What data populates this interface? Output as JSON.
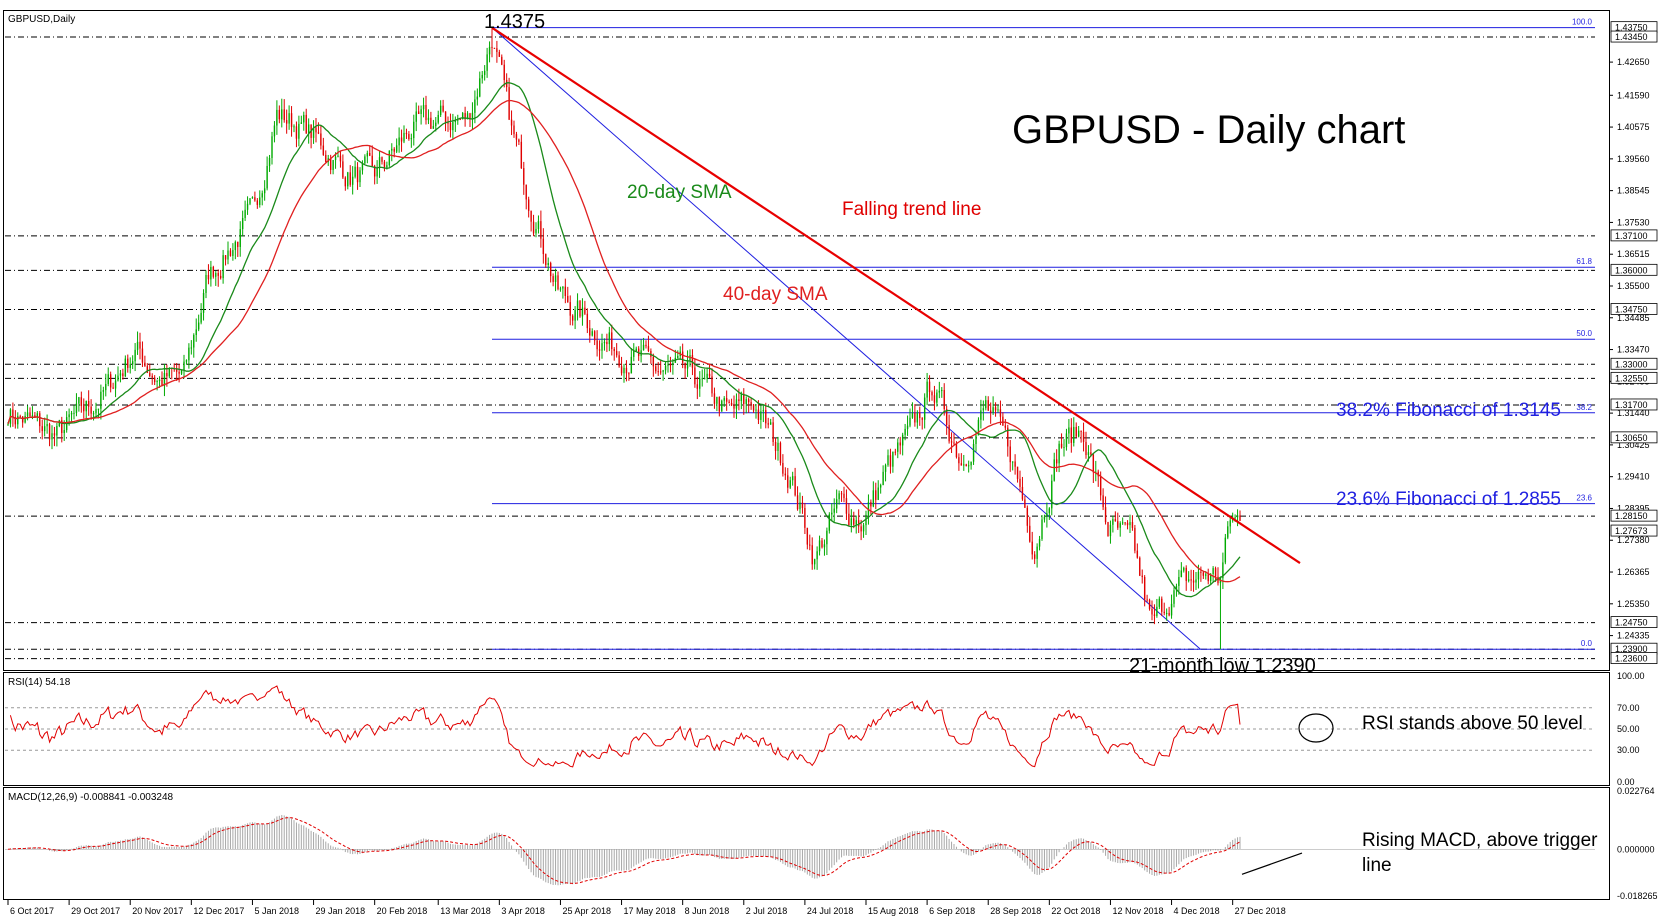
{
  "window": {
    "title": "GBPUSD,Daily"
  },
  "colors": {
    "background": "#ffffff",
    "bull_candle": "#00aa00",
    "bear_candle": "#e00000",
    "sma20": "#1a8a1a",
    "sma40": "#e02020",
    "trendline": "#e80000",
    "fib": "#1f1fe0",
    "level_line": "#000000",
    "rsi": "#e00000",
    "macd_hist": "#a8a8a8",
    "macd_signal": "#e00000"
  },
  "chart_data": [
    {
      "type": "candlestick",
      "title": "GBPUSD - Daily chart",
      "header": "GBPUSD,Daily",
      "ylim": [
        1.233,
        1.4425
      ],
      "x_tick_labels": [
        "6 Oct 2017",
        "29 Oct 2017",
        "20 Nov 2017",
        "12 Dec 2017",
        "5 Jan 2018",
        "29 Jan 2018",
        "20 Feb 2018",
        "13 Mar 2018",
        "3 Apr 2018",
        "25 Apr 2018",
        "17 May 2018",
        "8 Jun 2018",
        "2 Jul 2018",
        "24 Jul 2018",
        "15 Aug 2018",
        "6 Sep 2018",
        "28 Sep 2018",
        "22 Oct 2018",
        "12 Nov 2018",
        "4 Dec 2018",
        "27 Dec 2018"
      ],
      "y_tick_labels": [
        "1.42650",
        "1.41590",
        "1.40575",
        "1.39560",
        "1.38545",
        "1.37530",
        "1.36515",
        "1.35500",
        "1.34485",
        "1.33470",
        "1.32455",
        "1.31440",
        "1.30425",
        "1.29410",
        "1.28395",
        "1.27380",
        "1.26365",
        "1.25350",
        "1.24335"
      ],
      "highlighted_levels": [
        "1.43750",
        "1.43450",
        "1.37100",
        "1.36000",
        "1.34750",
        "1.33000",
        "1.32550",
        "1.31700",
        "1.30650",
        "1.28150",
        "1.27673",
        "1.24750",
        "1.23900",
        "1.23600"
      ],
      "horizontal_levels": [
        1.4345,
        1.371,
        1.36,
        1.3475,
        1.33,
        1.3255,
        1.317,
        1.3065,
        1.2815,
        1.2475,
        1.239,
        1.236
      ],
      "fibonacci": [
        {
          "label": "100.0",
          "value": 1.4375
        },
        {
          "label": "61.8",
          "value": 1.361
        },
        {
          "label": "50.0",
          "value": 1.338
        },
        {
          "label": "38.2",
          "value": 1.3145
        },
        {
          "label": "23.6",
          "value": 1.2855
        },
        {
          "label": "0.0",
          "value": 1.239
        }
      ],
      "series": [
        {
          "name": "20-day SMA"
        },
        {
          "name": "40-day SMA"
        }
      ],
      "path_anchors": [
        [
          0,
          1.315
        ],
        [
          20,
          1.307
        ],
        [
          40,
          1.321
        ],
        [
          52,
          1.335
        ],
        [
          62,
          1.325
        ],
        [
          72,
          1.326
        ],
        [
          82,
          1.358
        ],
        [
          100,
          1.377
        ],
        [
          110,
          1.41
        ],
        [
          122,
          1.405
        ],
        [
          140,
          1.39
        ],
        [
          150,
          1.39
        ],
        [
          165,
          1.405
        ],
        [
          178,
          1.408
        ],
        [
          188,
          1.408
        ],
        [
          198,
          1.435
        ],
        [
          206,
          1.404
        ],
        [
          215,
          1.38
        ],
        [
          225,
          1.353
        ],
        [
          245,
          1.337
        ],
        [
          265,
          1.328
        ],
        [
          280,
          1.326
        ],
        [
          295,
          1.314
        ],
        [
          305,
          1.318
        ],
        [
          320,
          1.295
        ],
        [
          330,
          1.268
        ],
        [
          340,
          1.285
        ],
        [
          350,
          1.28
        ],
        [
          360,
          1.297
        ],
        [
          370,
          1.308
        ],
        [
          378,
          1.324
        ],
        [
          390,
          1.3
        ],
        [
          400,
          1.316
        ],
        [
          410,
          1.302
        ],
        [
          420,
          1.273
        ],
        [
          430,
          1.304
        ],
        [
          440,
          1.309
        ],
        [
          450,
          1.278
        ],
        [
          460,
          1.272
        ],
        [
          468,
          1.246
        ],
        [
          475,
          1.256
        ],
        [
          480,
          1.259
        ],
        [
          490,
          1.263
        ],
        [
          496,
          1.262
        ],
        [
          500,
          1.28
        ],
        [
          504,
          1.28
        ]
      ],
      "annotations": {
        "high": "1.4375",
        "sma20": "20-day SMA",
        "sma40": "40-day SMA",
        "trend": "Falling trend line",
        "fib382": "38.2% Fibonacci of 1.3145",
        "fib236": "23.6% Fibonacci of 1.2855",
        "low": "21-month low 1.2390"
      }
    },
    {
      "type": "line",
      "title": "RSI(14) 54.18",
      "ylim": [
        0,
        100
      ],
      "y_tick_labels": [
        "100.00",
        "70.00",
        "50.00",
        "30.00",
        "0.00"
      ],
      "levels": [
        70,
        50,
        30
      ],
      "last_value": 54.18,
      "annotation": "RSI stands above 50 level"
    },
    {
      "type": "bar",
      "title": "MACD(12,26,9) -0.008841 -0.003248",
      "y_tick_labels": [
        "0.022764",
        "0.000000",
        "-0.018265"
      ],
      "ylim": [
        -0.018265,
        0.022764
      ],
      "series": [
        {
          "name": "MACD",
          "last_value": -0.008841
        },
        {
          "name": "Signal",
          "last_value": -0.003248
        }
      ],
      "annotation_line1": "Rising MACD, above trigger",
      "annotation_line2": "line"
    }
  ]
}
